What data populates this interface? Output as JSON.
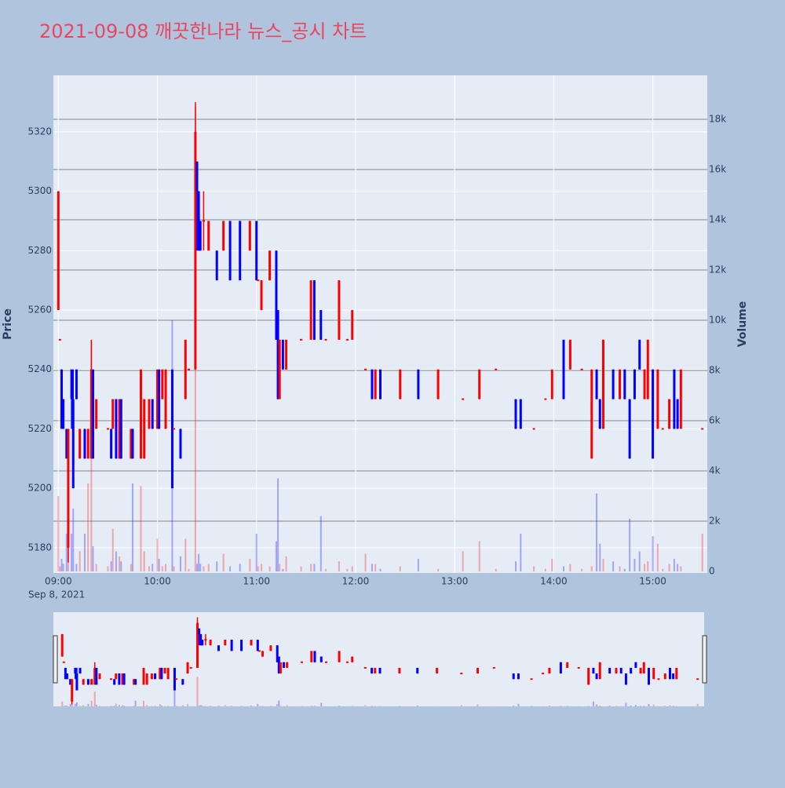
{
  "chart_data": {
    "type": "candlestick",
    "title": "2021-09-08 깨끗한나라 뉴스_공시 차트",
    "y_title": "Price",
    "y2_title": "Volume",
    "x_date_label": "Sep 8, 2021",
    "increasing_color": "#ff0000",
    "decreasing_color": "#0000ff",
    "x": [
      "09:00",
      "09:01",
      "09:02",
      "09:03",
      "09:05",
      "09:06",
      "09:08",
      "09:09",
      "09:11",
      "09:13",
      "09:16",
      "09:18",
      "09:20",
      "09:21",
      "09:23",
      "09:30",
      "09:32",
      "09:33",
      "09:35",
      "09:37",
      "09:38",
      "09:44",
      "09:45",
      "09:50",
      "09:52",
      "09:55",
      "09:57",
      "10:00",
      "10:01",
      "10:03",
      "10:05",
      "10:09",
      "10:10",
      "10:14",
      "10:17",
      "10:19",
      "10:23",
      "10:24",
      "10:25",
      "10:26",
      "10:28",
      "10:31",
      "10:36",
      "10:40",
      "10:44",
      "10:50",
      "10:56",
      "11:00",
      "11:01",
      "11:03",
      "11:08",
      "11:12",
      "11:13",
      "11:14",
      "11:16",
      "11:18",
      "11:27",
      "11:33",
      "11:35",
      "11:39",
      "11:42",
      "11:50",
      "11:55",
      "11:58",
      "12:06",
      "12:10",
      "12:12",
      "12:15",
      "12:27",
      "12:38",
      "12:50",
      "13:05",
      "13:15",
      "13:25",
      "13:37",
      "13:40",
      "13:48",
      "13:55",
      "13:59",
      "14:06",
      "14:10",
      "14:17",
      "14:23",
      "14:26",
      "14:28",
      "14:30",
      "14:36",
      "14:40",
      "14:43",
      "14:46",
      "14:49",
      "14:52",
      "14:55",
      "14:57",
      "15:00",
      "15:03",
      "15:06",
      "15:10",
      "15:13",
      "15:15",
      "15:17",
      "15:30"
    ],
    "open": [
      5260,
      5250,
      5240,
      5230,
      5220,
      5180,
      5240,
      5230,
      5240,
      5210,
      5220,
      5210,
      5210,
      5240,
      5220,
      5220,
      5220,
      5220,
      5230,
      5210,
      5230,
      5210,
      5220,
      5210,
      5210,
      5220,
      5230,
      5220,
      5240,
      5230,
      5220,
      5240,
      5220,
      5220,
      5230,
      5240,
      5240,
      5310,
      5300,
      5290,
      5290,
      5280,
      5280,
      5280,
      5290,
      5290,
      5280,
      5290,
      5270,
      5260,
      5270,
      5280,
      5260,
      5230,
      5250,
      5240,
      5250,
      5250,
      5270,
      5260,
      5250,
      5250,
      5250,
      5250,
      5240,
      5240,
      5230,
      5240,
      5230,
      5240,
      5230,
      5230,
      5230,
      5240,
      5230,
      5230,
      5220,
      5230,
      5230,
      5250,
      5240,
      5240,
      5210,
      5240,
      5230,
      5220,
      5240,
      5230,
      5240,
      5230,
      5240,
      5250,
      5230,
      5230,
      5240,
      5220,
      5220,
      5220,
      5240,
      5230,
      5220,
      5220
    ],
    "high": [
      5300,
      5250,
      5240,
      5230,
      5220,
      5220,
      5240,
      5240,
      5240,
      5220,
      5220,
      5220,
      5250,
      5240,
      5230,
      5220,
      5220,
      5230,
      5230,
      5230,
      5230,
      5220,
      5220,
      5240,
      5230,
      5230,
      5230,
      5240,
      5240,
      5240,
      5240,
      5240,
      5220,
      5220,
      5250,
      5240,
      5330,
      5310,
      5300,
      5290,
      5300,
      5290,
      5280,
      5290,
      5290,
      5290,
      5290,
      5290,
      5270,
      5270,
      5280,
      5280,
      5260,
      5250,
      5250,
      5250,
      5250,
      5270,
      5270,
      5260,
      5250,
      5270,
      5250,
      5260,
      5240,
      5240,
      5240,
      5240,
      5240,
      5240,
      5240,
      5230,
      5240,
      5240,
      5230,
      5230,
      5220,
      5230,
      5240,
      5250,
      5250,
      5240,
      5240,
      5240,
      5230,
      5250,
      5240,
      5240,
      5240,
      5230,
      5240,
      5250,
      5240,
      5250,
      5240,
      5240,
      5220,
      5230,
      5240,
      5230,
      5240,
      5220
    ],
    "low": [
      5260,
      5250,
      5220,
      5220,
      5210,
      5175,
      5220,
      5200,
      5230,
      5210,
      5210,
      5210,
      5210,
      5210,
      5220,
      5220,
      5210,
      5220,
      5210,
      5210,
      5210,
      5210,
      5210,
      5210,
      5210,
      5220,
      5220,
      5220,
      5220,
      5230,
      5220,
      5200,
      5220,
      5210,
      5230,
      5240,
      5240,
      5280,
      5280,
      5280,
      5280,
      5280,
      5270,
      5280,
      5270,
      5270,
      5280,
      5270,
      5270,
      5260,
      5270,
      5250,
      5230,
      5230,
      5240,
      5240,
      5250,
      5250,
      5250,
      5250,
      5250,
      5250,
      5250,
      5250,
      5240,
      5230,
      5230,
      5230,
      5230,
      5230,
      5230,
      5230,
      5230,
      5240,
      5220,
      5220,
      5220,
      5230,
      5230,
      5230,
      5240,
      5240,
      5210,
      5230,
      5220,
      5220,
      5230,
      5230,
      5230,
      5210,
      5230,
      5240,
      5230,
      5230,
      5210,
      5220,
      5220,
      5220,
      5220,
      5220,
      5220,
      5220
    ],
    "close": [
      5300,
      5250,
      5220,
      5220,
      5210,
      5220,
      5230,
      5200,
      5230,
      5220,
      5210,
      5220,
      5240,
      5210,
      5230,
      5220,
      5210,
      5230,
      5210,
      5230,
      5210,
      5220,
      5210,
      5240,
      5230,
      5230,
      5220,
      5240,
      5220,
      5240,
      5240,
      5200,
      5220,
      5210,
      5250,
      5240,
      5320,
      5300,
      5280,
      5280,
      5290,
      5290,
      5270,
      5290,
      5270,
      5270,
      5290,
      5270,
      5270,
      5270,
      5280,
      5250,
      5230,
      5250,
      5240,
      5250,
      5250,
      5270,
      5250,
      5250,
      5250,
      5270,
      5250,
      5260,
      5240,
      5230,
      5240,
      5230,
      5240,
      5230,
      5240,
      5230,
      5240,
      5240,
      5220,
      5220,
      5220,
      5230,
      5240,
      5230,
      5250,
      5240,
      5240,
      5230,
      5220,
      5250,
      5230,
      5240,
      5230,
      5210,
      5230,
      5240,
      5240,
      5250,
      5210,
      5240,
      5220,
      5230,
      5220,
      5220,
      5240,
      5220
    ],
    "volume": [
      3000,
      200,
      500,
      300,
      1500,
      1800,
      1500,
      2500,
      300,
      800,
      1500,
      3500,
      9200,
      1000,
      300,
      200,
      400,
      1700,
      800,
      600,
      400,
      300,
      3500,
      3400,
      800,
      200,
      300,
      1300,
      500,
      200,
      300,
      10000,
      200,
      600,
      1300,
      100,
      18500,
      300,
      700,
      300,
      200,
      300,
      400,
      700,
      200,
      300,
      500,
      1500,
      200,
      300,
      200,
      1200,
      3700,
      300,
      100,
      600,
      200,
      300,
      300,
      2200,
      100,
      400,
      100,
      200,
      700,
      300,
      300,
      100,
      200,
      500,
      100,
      800,
      1200,
      100,
      400,
      1500,
      200,
      100,
      500,
      200,
      300,
      100,
      200,
      3100,
      1100,
      500,
      400,
      200,
      100,
      2100,
      500,
      800,
      300,
      400,
      1400,
      1100,
      100,
      300,
      500,
      300,
      200,
      1500
    ],
    "xlim": [
      "08:57",
      "15:33"
    ],
    "xticks": [
      "09:00",
      "10:00",
      "11:00",
      "12:00",
      "13:00",
      "14:00",
      "15:00"
    ],
    "ylim": [
      5171.5,
      5339
    ],
    "yticks": [
      5180,
      5200,
      5220,
      5240,
      5260,
      5280,
      5300,
      5320
    ],
    "y2lim": [
      -62,
      19750
    ],
    "y2ticks": [
      0,
      {
        "value": 2000,
        "label": "2k"
      },
      {
        "value": 4000,
        "label": "4k"
      },
      {
        "value": 6000,
        "label": "6k"
      },
      {
        "value": 8000,
        "label": "8k"
      },
      {
        "value": 10000,
        "label": "10k"
      },
      {
        "value": 12000,
        "label": "12k"
      },
      {
        "value": 14000,
        "label": "14k"
      },
      {
        "value": 16000,
        "label": "16k"
      },
      {
        "value": 18000,
        "label": "18k"
      }
    ],
    "grid": true,
    "rangeslider": true
  }
}
